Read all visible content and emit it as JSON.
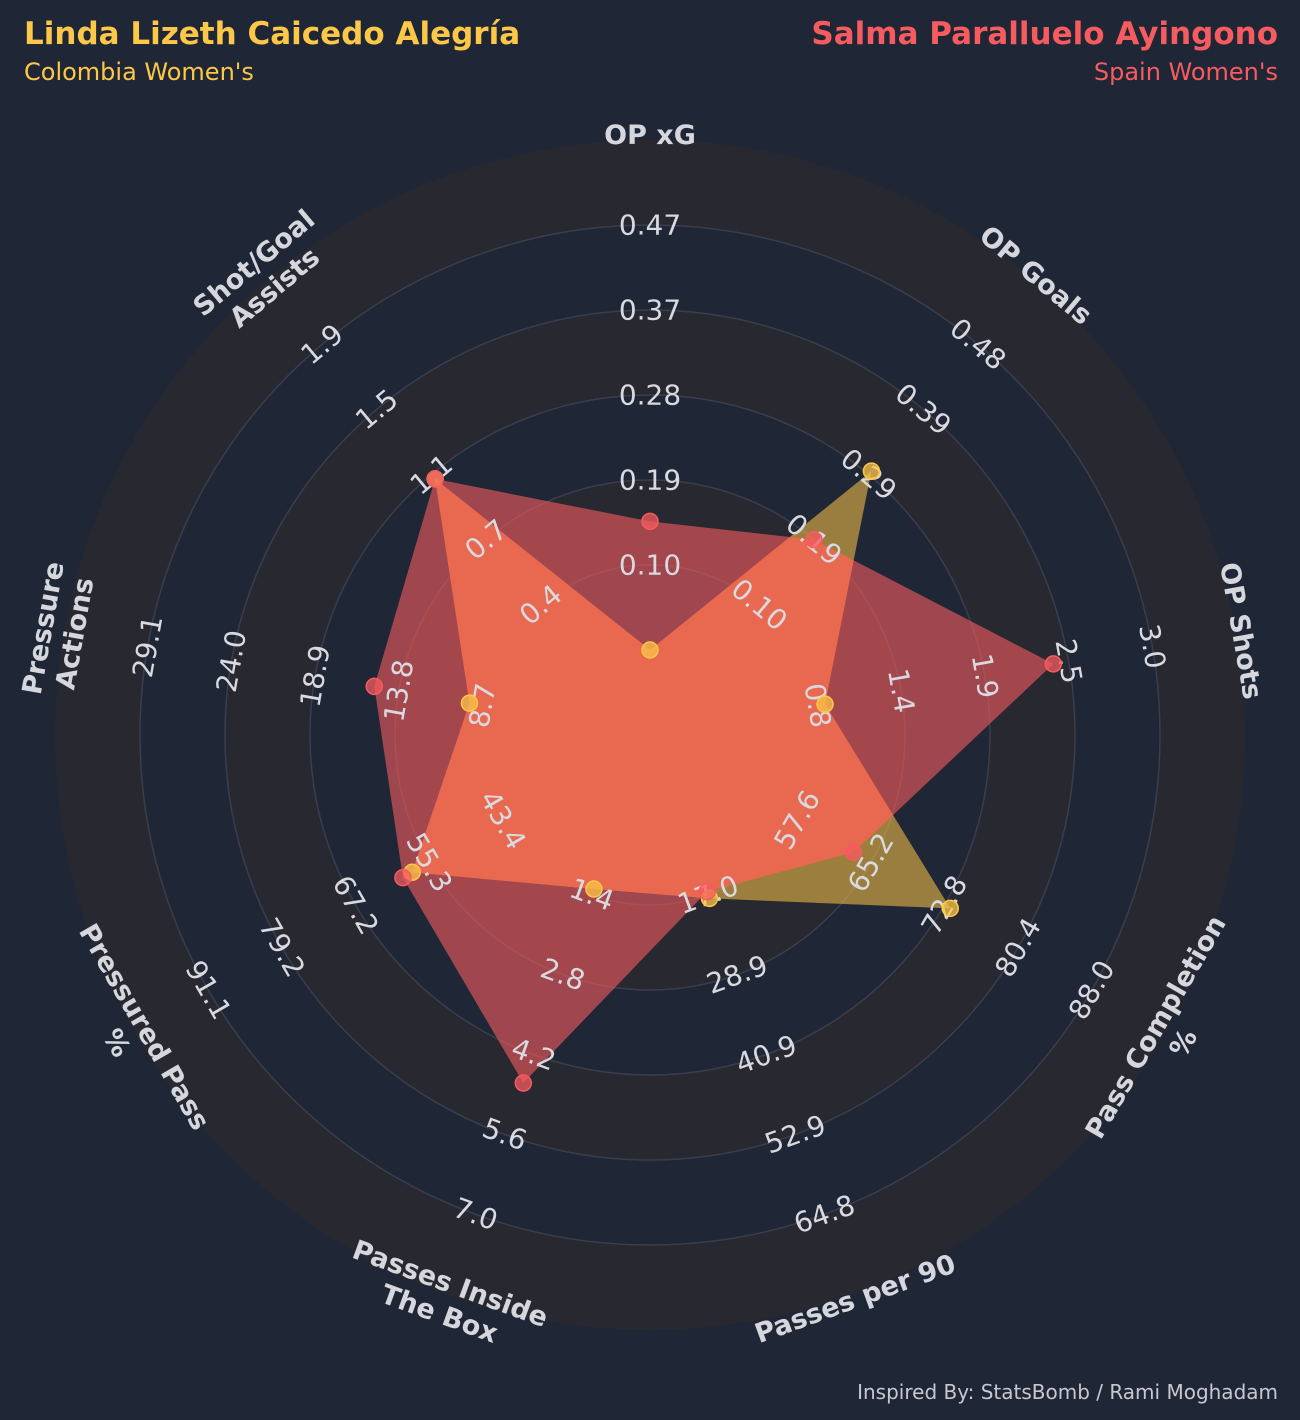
{
  "player1": {
    "name": "Linda Lizeth Caicedo Alegría",
    "team": "Colombia Women's",
    "color": "#fdc748"
  },
  "player2": {
    "name": "Salma Paralluelo Ayingono",
    "team": "Spain Women's",
    "color": "#f65b5f"
  },
  "credit": "Inspired By: StatsBomb / Rami Moghadam",
  "colors": {
    "background": "#1f2737",
    "ring": "#272830",
    "overlap": "#e8694f"
  },
  "chart_data": {
    "type": "radar",
    "params": [
      [
        "OP xG"
      ],
      [
        "OP Goals"
      ],
      [
        "OP Shots"
      ],
      [
        "Pass Completion",
        "%"
      ],
      [
        "Passes per 90"
      ],
      [
        "Passes Inside",
        "The Box"
      ],
      [
        "Pressured Pass",
        "%"
      ],
      [
        "Pressure",
        "Actions"
      ],
      [
        "Shot/Goal",
        "Assists"
      ]
    ],
    "ticks": [
      [
        "0.10",
        "0.19",
        "0.28",
        "0.37",
        "0.47"
      ],
      [
        "0.10",
        "0.19",
        "0.29",
        "0.39",
        "0.48"
      ],
      [
        "0.8",
        "1.4",
        "1.9",
        "2.5",
        "3.0"
      ],
      [
        "57.6",
        "65.2",
        "72.8",
        "80.4",
        "88.0"
      ],
      [
        "17.0",
        "28.9",
        "40.9",
        "52.9",
        "64.8"
      ],
      [
        "1.4",
        "2.8",
        "4.2",
        "5.6",
        "7.0"
      ],
      [
        "43.4",
        "55.3",
        "67.2",
        "79.2",
        "91.1"
      ],
      [
        "8.7",
        "13.8",
        "18.9",
        "24.0",
        "29.1"
      ],
      [
        "0.4",
        "0.7",
        "1.1",
        "1.5",
        "1.9"
      ]
    ],
    "series": [
      {
        "name": "Linda Lizeth Caicedo Alegría",
        "values": [
          0.1,
          0.39,
          1.4,
          81.0,
          29.5,
          2.7,
          70.0,
          14.6,
          1.5
        ]
      },
      {
        "name": "Salma Paralluelo Ayingono",
        "values": [
          0.24,
          0.29,
          2.9,
          71.0,
          28.5,
          6.1,
          71.5,
          20.4,
          1.5
        ]
      }
    ]
  }
}
